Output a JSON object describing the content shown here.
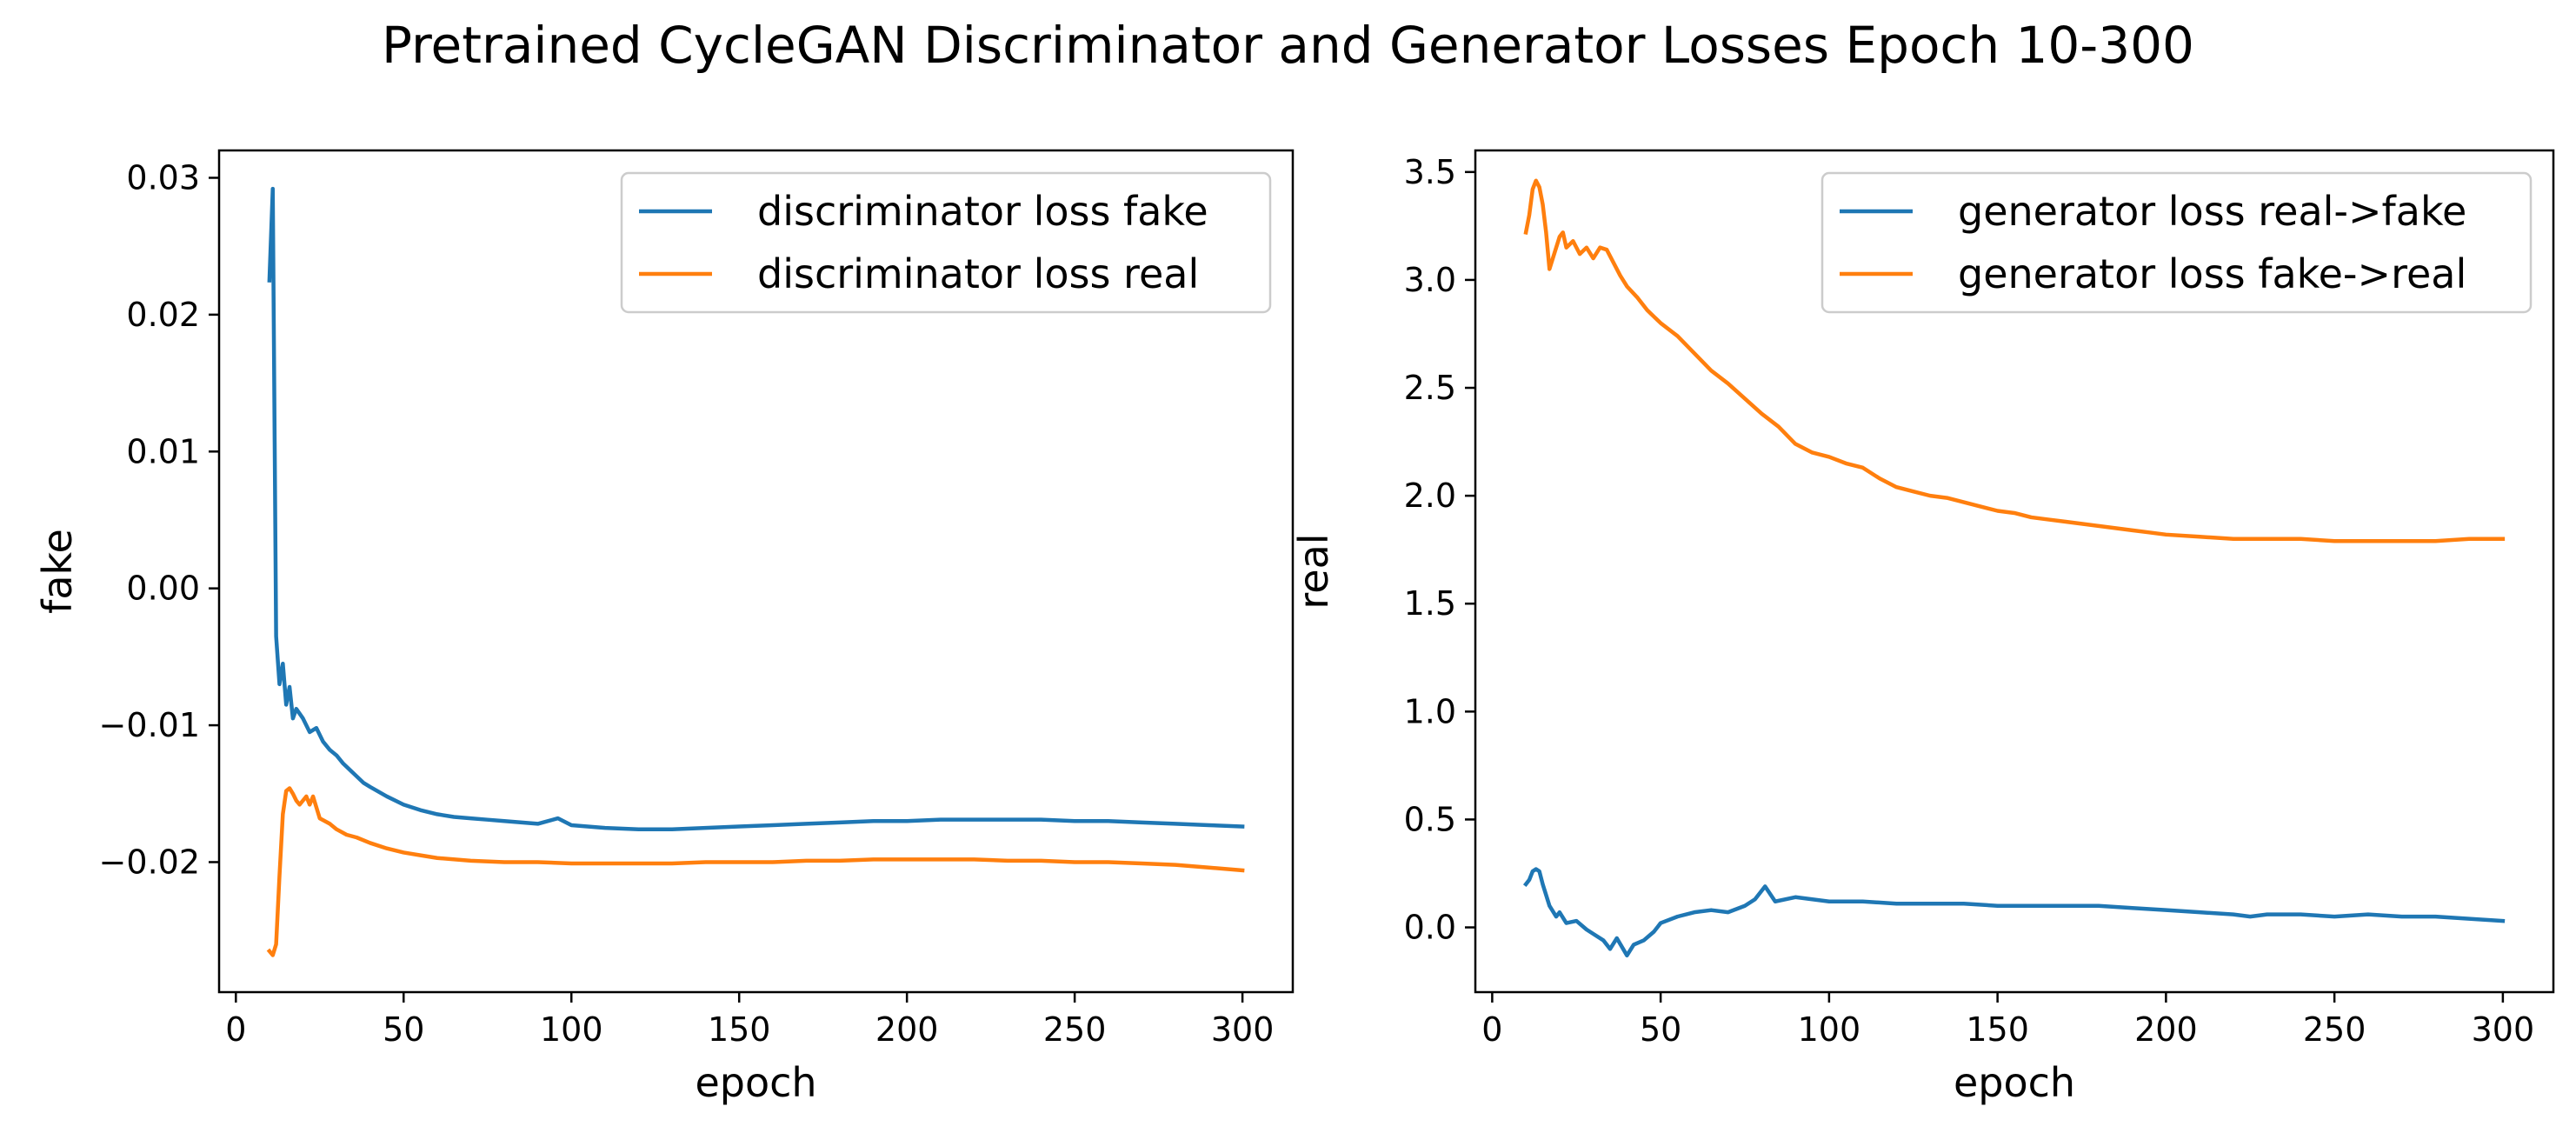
{
  "figure": {
    "title": "Pretrained CycleGAN Discriminator and Generator Losses Epoch 10-300"
  },
  "chart_data": [
    {
      "type": "line",
      "xlabel": "epoch",
      "ylabel": "fake",
      "xlim": [
        -5,
        315
      ],
      "ylim": [
        -0.0295,
        0.032
      ],
      "xticks": [
        0,
        50,
        100,
        150,
        200,
        250,
        300
      ],
      "xtick_labels": [
        "0",
        "50",
        "100",
        "150",
        "200",
        "250",
        "300"
      ],
      "yticks": [
        -0.02,
        -0.01,
        0.0,
        0.01,
        0.02,
        0.03
      ],
      "ytick_labels": [
        "−0.02",
        "−0.01",
        "0.00",
        "0.01",
        "0.02",
        "0.03"
      ],
      "grid": false,
      "legend": "top-right",
      "series": [
        {
          "name": "discriminator loss fake",
          "color": "#1f77b4",
          "points": [
            [
              10,
              0.0225
            ],
            [
              11,
              0.0292
            ],
            [
              12,
              -0.0035
            ],
            [
              13,
              -0.007
            ],
            [
              14,
              -0.0055
            ],
            [
              15,
              -0.0085
            ],
            [
              16,
              -0.0072
            ],
            [
              17,
              -0.0095
            ],
            [
              18,
              -0.0088
            ],
            [
              20,
              -0.0095
            ],
            [
              22,
              -0.0105
            ],
            [
              24,
              -0.0102
            ],
            [
              26,
              -0.0112
            ],
            [
              28,
              -0.0118
            ],
            [
              30,
              -0.0122
            ],
            [
              32,
              -0.0128
            ],
            [
              35,
              -0.0135
            ],
            [
              38,
              -0.0142
            ],
            [
              40,
              -0.0145
            ],
            [
              45,
              -0.0152
            ],
            [
              50,
              -0.0158
            ],
            [
              55,
              -0.0162
            ],
            [
              60,
              -0.0165
            ],
            [
              65,
              -0.0167
            ],
            [
              70,
              -0.0168
            ],
            [
              75,
              -0.0169
            ],
            [
              80,
              -0.017
            ],
            [
              90,
              -0.0172
            ],
            [
              96,
              -0.0168
            ],
            [
              100,
              -0.0173
            ],
            [
              110,
              -0.0175
            ],
            [
              120,
              -0.0176
            ],
            [
              130,
              -0.0176
            ],
            [
              140,
              -0.0175
            ],
            [
              150,
              -0.0174
            ],
            [
              160,
              -0.0173
            ],
            [
              170,
              -0.0172
            ],
            [
              180,
              -0.0171
            ],
            [
              190,
              -0.017
            ],
            [
              200,
              -0.017
            ],
            [
              210,
              -0.0169
            ],
            [
              220,
              -0.0169
            ],
            [
              230,
              -0.0169
            ],
            [
              240,
              -0.0169
            ],
            [
              250,
              -0.017
            ],
            [
              260,
              -0.017
            ],
            [
              270,
              -0.0171
            ],
            [
              280,
              -0.0172
            ],
            [
              290,
              -0.0173
            ],
            [
              300,
              -0.0174
            ]
          ]
        },
        {
          "name": "discriminator loss real",
          "color": "#ff7f0e",
          "points": [
            [
              10,
              -0.0265
            ],
            [
              11,
              -0.0268
            ],
            [
              12,
              -0.026
            ],
            [
              13,
              -0.021
            ],
            [
              14,
              -0.0165
            ],
            [
              15,
              -0.0148
            ],
            [
              16,
              -0.0146
            ],
            [
              17,
              -0.015
            ],
            [
              18,
              -0.0155
            ],
            [
              19,
              -0.0158
            ],
            [
              20,
              -0.0155
            ],
            [
              21,
              -0.0152
            ],
            [
              22,
              -0.0158
            ],
            [
              23,
              -0.0152
            ],
            [
              24,
              -0.016
            ],
            [
              25,
              -0.0168
            ],
            [
              28,
              -0.0172
            ],
            [
              30,
              -0.0176
            ],
            [
              33,
              -0.018
            ],
            [
              36,
              -0.0182
            ],
            [
              40,
              -0.0186
            ],
            [
              45,
              -0.019
            ],
            [
              50,
              -0.0193
            ],
            [
              55,
              -0.0195
            ],
            [
              60,
              -0.0197
            ],
            [
              70,
              -0.0199
            ],
            [
              80,
              -0.02
            ],
            [
              90,
              -0.02
            ],
            [
              100,
              -0.0201
            ],
            [
              110,
              -0.0201
            ],
            [
              120,
              -0.0201
            ],
            [
              130,
              -0.0201
            ],
            [
              140,
              -0.02
            ],
            [
              150,
              -0.02
            ],
            [
              160,
              -0.02
            ],
            [
              170,
              -0.0199
            ],
            [
              180,
              -0.0199
            ],
            [
              190,
              -0.0198
            ],
            [
              200,
              -0.0198
            ],
            [
              210,
              -0.0198
            ],
            [
              220,
              -0.0198
            ],
            [
              230,
              -0.0199
            ],
            [
              240,
              -0.0199
            ],
            [
              250,
              -0.02
            ],
            [
              260,
              -0.02
            ],
            [
              270,
              -0.0201
            ],
            [
              280,
              -0.0202
            ],
            [
              290,
              -0.0204
            ],
            [
              300,
              -0.0206
            ]
          ]
        }
      ]
    },
    {
      "type": "line",
      "xlabel": "epoch",
      "ylabel": "real",
      "xlim": [
        -5,
        315
      ],
      "ylim": [
        -0.3,
        3.6
      ],
      "xticks": [
        0,
        50,
        100,
        150,
        200,
        250,
        300
      ],
      "xtick_labels": [
        "0",
        "50",
        "100",
        "150",
        "200",
        "250",
        "300"
      ],
      "yticks": [
        0.0,
        0.5,
        1.0,
        1.5,
        2.0,
        2.5,
        3.0,
        3.5
      ],
      "ytick_labels": [
        "0.0",
        "0.5",
        "1.0",
        "1.5",
        "2.0",
        "2.5",
        "3.0",
        "3.5"
      ],
      "grid": false,
      "legend": "top-right",
      "series": [
        {
          "name": "generator loss real->fake",
          "color": "#1f77b4",
          "points": [
            [
              10,
              0.2
            ],
            [
              11,
              0.22
            ],
            [
              12,
              0.26
            ],
            [
              13,
              0.27
            ],
            [
              14,
              0.26
            ],
            [
              15,
              0.2
            ],
            [
              17,
              0.1
            ],
            [
              19,
              0.05
            ],
            [
              20,
              0.07
            ],
            [
              22,
              0.02
            ],
            [
              25,
              0.03
            ],
            [
              28,
              -0.01
            ],
            [
              30,
              -0.03
            ],
            [
              33,
              -0.06
            ],
            [
              35,
              -0.1
            ],
            [
              37,
              -0.05
            ],
            [
              40,
              -0.13
            ],
            [
              42,
              -0.08
            ],
            [
              45,
              -0.06
            ],
            [
              48,
              -0.02
            ],
            [
              50,
              0.02
            ],
            [
              55,
              0.05
            ],
            [
              60,
              0.07
            ],
            [
              65,
              0.08
            ],
            [
              70,
              0.07
            ],
            [
              75,
              0.1
            ],
            [
              78,
              0.13
            ],
            [
              81,
              0.19
            ],
            [
              84,
              0.12
            ],
            [
              90,
              0.14
            ],
            [
              95,
              0.13
            ],
            [
              100,
              0.12
            ],
            [
              110,
              0.12
            ],
            [
              120,
              0.11
            ],
            [
              130,
              0.11
            ],
            [
              140,
              0.11
            ],
            [
              150,
              0.1
            ],
            [
              160,
              0.1
            ],
            [
              170,
              0.1
            ],
            [
              180,
              0.1
            ],
            [
              190,
              0.09
            ],
            [
              200,
              0.08
            ],
            [
              210,
              0.07
            ],
            [
              220,
              0.06
            ],
            [
              225,
              0.05
            ],
            [
              230,
              0.06
            ],
            [
              240,
              0.06
            ],
            [
              250,
              0.05
            ],
            [
              260,
              0.06
            ],
            [
              270,
              0.05
            ],
            [
              280,
              0.05
            ],
            [
              290,
              0.04
            ],
            [
              300,
              0.03
            ]
          ]
        },
        {
          "name": "generator loss fake->real",
          "color": "#ff7f0e",
          "points": [
            [
              10,
              3.22
            ],
            [
              11,
              3.3
            ],
            [
              12,
              3.42
            ],
            [
              13,
              3.46
            ],
            [
              14,
              3.43
            ],
            [
              15,
              3.35
            ],
            [
              16,
              3.22
            ],
            [
              17,
              3.05
            ],
            [
              18,
              3.1
            ],
            [
              19,
              3.15
            ],
            [
              20,
              3.2
            ],
            [
              21,
              3.22
            ],
            [
              22,
              3.15
            ],
            [
              24,
              3.18
            ],
            [
              26,
              3.12
            ],
            [
              28,
              3.15
            ],
            [
              30,
              3.1
            ],
            [
              32,
              3.15
            ],
            [
              34,
              3.14
            ],
            [
              36,
              3.08
            ],
            [
              38,
              3.02
            ],
            [
              40,
              2.97
            ],
            [
              43,
              2.92
            ],
            [
              46,
              2.86
            ],
            [
              50,
              2.8
            ],
            [
              55,
              2.74
            ],
            [
              60,
              2.66
            ],
            [
              65,
              2.58
            ],
            [
              70,
              2.52
            ],
            [
              75,
              2.45
            ],
            [
              80,
              2.38
            ],
            [
              85,
              2.32
            ],
            [
              90,
              2.24
            ],
            [
              95,
              2.2
            ],
            [
              100,
              2.18
            ],
            [
              105,
              2.15
            ],
            [
              110,
              2.13
            ],
            [
              115,
              2.08
            ],
            [
              120,
              2.04
            ],
            [
              125,
              2.02
            ],
            [
              130,
              2.0
            ],
            [
              135,
              1.99
            ],
            [
              140,
              1.97
            ],
            [
              145,
              1.95
            ],
            [
              150,
              1.93
            ],
            [
              155,
              1.92
            ],
            [
              160,
              1.9
            ],
            [
              165,
              1.89
            ],
            [
              170,
              1.88
            ],
            [
              175,
              1.87
            ],
            [
              180,
              1.86
            ],
            [
              185,
              1.85
            ],
            [
              190,
              1.84
            ],
            [
              195,
              1.83
            ],
            [
              200,
              1.82
            ],
            [
              210,
              1.81
            ],
            [
              220,
              1.8
            ],
            [
              230,
              1.8
            ],
            [
              240,
              1.8
            ],
            [
              250,
              1.79
            ],
            [
              260,
              1.79
            ],
            [
              270,
              1.79
            ],
            [
              280,
              1.79
            ],
            [
              290,
              1.8
            ],
            [
              300,
              1.8
            ]
          ]
        }
      ]
    }
  ]
}
